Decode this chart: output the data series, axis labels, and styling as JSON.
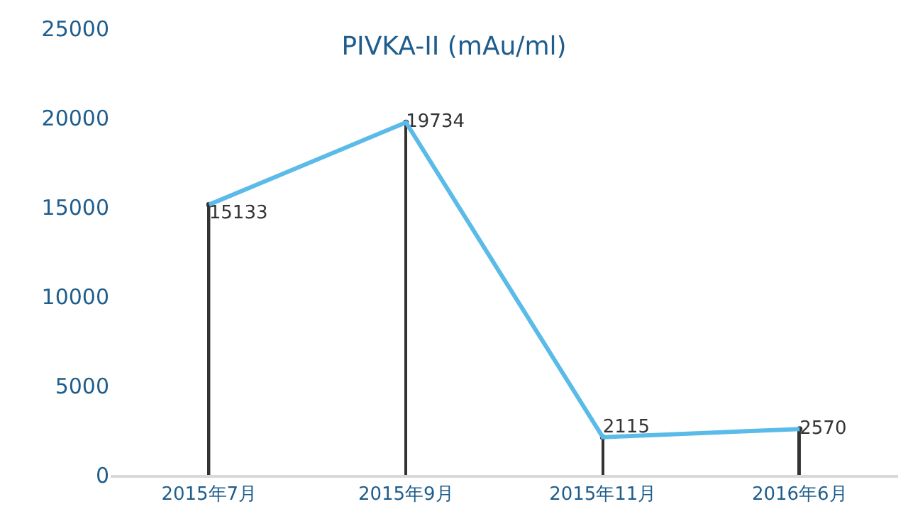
{
  "chart_data": {
    "type": "line",
    "title": "PIVKA-II (mAu/ml)",
    "categories": [
      "2015年7月",
      "2015年9月",
      "2015年11月",
      "2016年6月"
    ],
    "series": [
      {
        "type": "lollipop",
        "color": "#333333",
        "marker": "circle",
        "values": [
          15133,
          19734,
          2115,
          2570
        ],
        "value_labels": [
          "15133",
          "19734",
          "2115",
          "2570"
        ]
      },
      {
        "color": "#5bbbe8",
        "values": [
          15133,
          19734,
          2115,
          2570
        ]
      }
    ],
    "ylim": [
      0,
      25000
    ],
    "yticks": [
      0,
      5000,
      10000,
      15000,
      20000,
      25000
    ],
    "marker": "none"
  }
}
